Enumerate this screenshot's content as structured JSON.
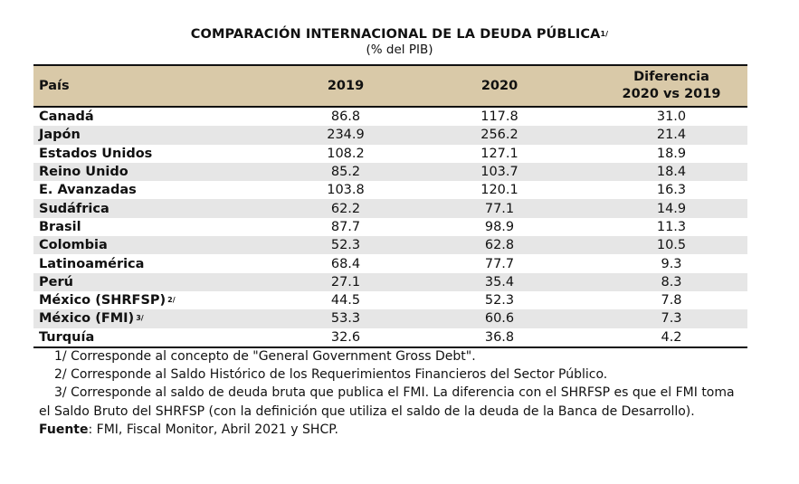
{
  "title": {
    "text": "COMPARACIÓN INTERNACIONAL DE LA DEUDA PÚBLICA",
    "note_marker": "1/"
  },
  "subtitle": "(% del PIB)",
  "table": {
    "headers": {
      "pais": "País",
      "y2019": "2019",
      "y2020": "2020",
      "diferencia": "Diferencia\n2020 vs 2019"
    },
    "rows": [
      {
        "pais": "Canadá",
        "marker": "",
        "y2019": "86.8",
        "y2020": "117.8",
        "diferencia": "31.0"
      },
      {
        "pais": "Japón",
        "marker": "",
        "y2019": "234.9",
        "y2020": "256.2",
        "diferencia": "21.4"
      },
      {
        "pais": "Estados Unidos",
        "marker": "",
        "y2019": "108.2",
        "y2020": "127.1",
        "diferencia": "18.9"
      },
      {
        "pais": "Reino Unido",
        "marker": "",
        "y2019": "85.2",
        "y2020": "103.7",
        "diferencia": "18.4"
      },
      {
        "pais": "E. Avanzadas",
        "marker": "",
        "y2019": "103.8",
        "y2020": "120.1",
        "diferencia": "16.3"
      },
      {
        "pais": "Sudáfrica",
        "marker": "",
        "y2019": "62.2",
        "y2020": "77.1",
        "diferencia": "14.9"
      },
      {
        "pais": "Brasil",
        "marker": "",
        "y2019": "87.7",
        "y2020": "98.9",
        "diferencia": "11.3"
      },
      {
        "pais": "Colombia",
        "marker": "",
        "y2019": "52.3",
        "y2020": "62.8",
        "diferencia": "10.5"
      },
      {
        "pais": "Latinoamérica",
        "marker": "",
        "y2019": "68.4",
        "y2020": "77.7",
        "diferencia": "9.3"
      },
      {
        "pais": "Perú",
        "marker": "",
        "y2019": "27.1",
        "y2020": "35.4",
        "diferencia": "8.3"
      },
      {
        "pais": "México (SHRFSP)",
        "marker": "2/",
        "y2019": "44.5",
        "y2020": "52.3",
        "diferencia": "7.8"
      },
      {
        "pais": "México (FMI)",
        "marker": "3/",
        "y2019": "53.3",
        "y2020": "60.6",
        "diferencia": "7.3"
      },
      {
        "pais": "Turquía",
        "marker": "",
        "y2019": "32.6",
        "y2020": "36.8",
        "diferencia": "4.2"
      }
    ]
  },
  "notes": {
    "n1": "1/ Corresponde al concepto de \"General Government Gross Debt\".",
    "n2": "2/ Corresponde al Saldo Histórico de los Requerimientos Financieros del Sector Público.",
    "n3": "3/ Corresponde al saldo de deuda bruta que publica el FMI. La diferencia con el SHRFSP es que el FMI toma el Saldo Bruto del SHRFSP (con la definición que utiliza el saldo de la deuda de la Banca de Desarrollo).",
    "source_label": "Fuente",
    "source_text": ": FMI, Fiscal Monitor, Abril 2021 y SHCP."
  }
}
